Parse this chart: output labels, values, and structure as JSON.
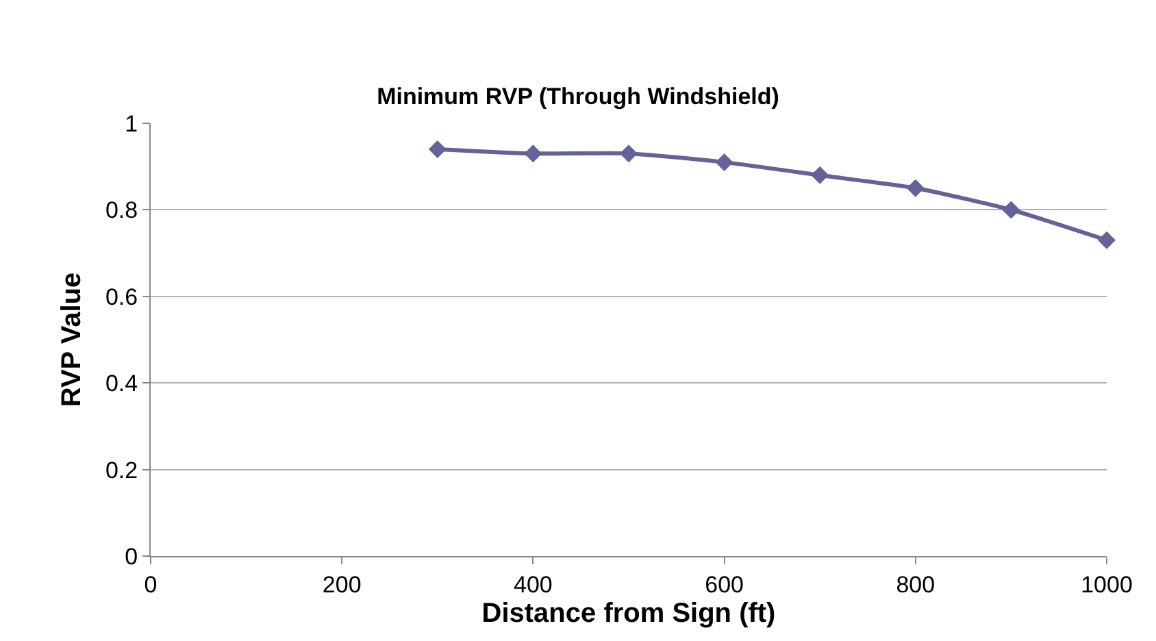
{
  "chart_data": {
    "type": "line",
    "title": "Minimum RVP (Through Windshield)",
    "xlabel": "Distance from Sign (ft)",
    "ylabel": "RVP Value",
    "x": [
      300,
      400,
      500,
      600,
      700,
      800,
      900,
      1000
    ],
    "series": [
      {
        "color": "#636398",
        "values": [
          0.94,
          0.93,
          0.93,
          0.91,
          0.88,
          0.85,
          0.8,
          0.73
        ]
      }
    ],
    "xlim": [
      0,
      1000
    ],
    "xticks": [
      0,
      200,
      400,
      600,
      800,
      1000
    ],
    "ylim": [
      0,
      1
    ],
    "yticks": [
      0,
      0.2,
      0.4,
      0.6,
      0.8,
      1
    ],
    "grid": "y",
    "legend": false,
    "marker": "diamond",
    "line_style": "solid"
  }
}
